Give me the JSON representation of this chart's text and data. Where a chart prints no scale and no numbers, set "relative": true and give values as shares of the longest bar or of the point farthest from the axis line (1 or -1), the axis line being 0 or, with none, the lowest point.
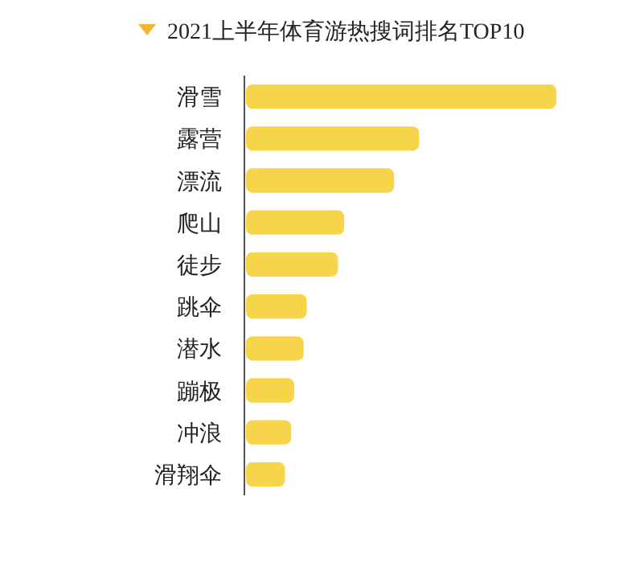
{
  "chart_data": {
    "type": "bar",
    "orientation": "horizontal",
    "relative": true,
    "title": "2021上半年体育游热搜词排名TOP10",
    "categories": [
      "滑雪",
      "露营",
      "漂流",
      "爬山",
      "徒步",
      "跳伞",
      "潜水",
      "蹦极",
      "冲浪",
      "滑翔伞"
    ],
    "values": [
      1,
      0.56,
      0.48,
      0.32,
      0.3,
      0.2,
      0.19,
      0.16,
      0.15,
      0.13
    ],
    "color": "#f7d54a"
  }
}
